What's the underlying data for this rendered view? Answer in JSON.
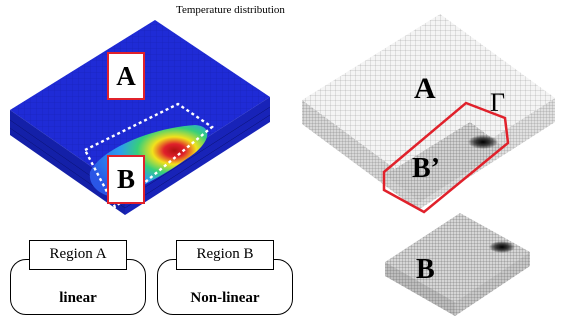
{
  "title": "Temperature distribution",
  "left_model": {
    "label_a": "A",
    "label_b": "B",
    "colors": {
      "plate": "#1f2bd6",
      "hot": "#e0212b",
      "warm": "#f2e21c",
      "mid": "#37d07a",
      "cool": "#2c9cf0"
    }
  },
  "right_model": {
    "label_a": "A",
    "label_b_prime": "B’",
    "label_gamma": "Γ",
    "label_b": "B"
  },
  "regions": [
    {
      "tab": "Region A",
      "body": "linear"
    },
    {
      "tab": "Region B",
      "body": "Non-linear"
    }
  ],
  "accent": "#e0212b"
}
